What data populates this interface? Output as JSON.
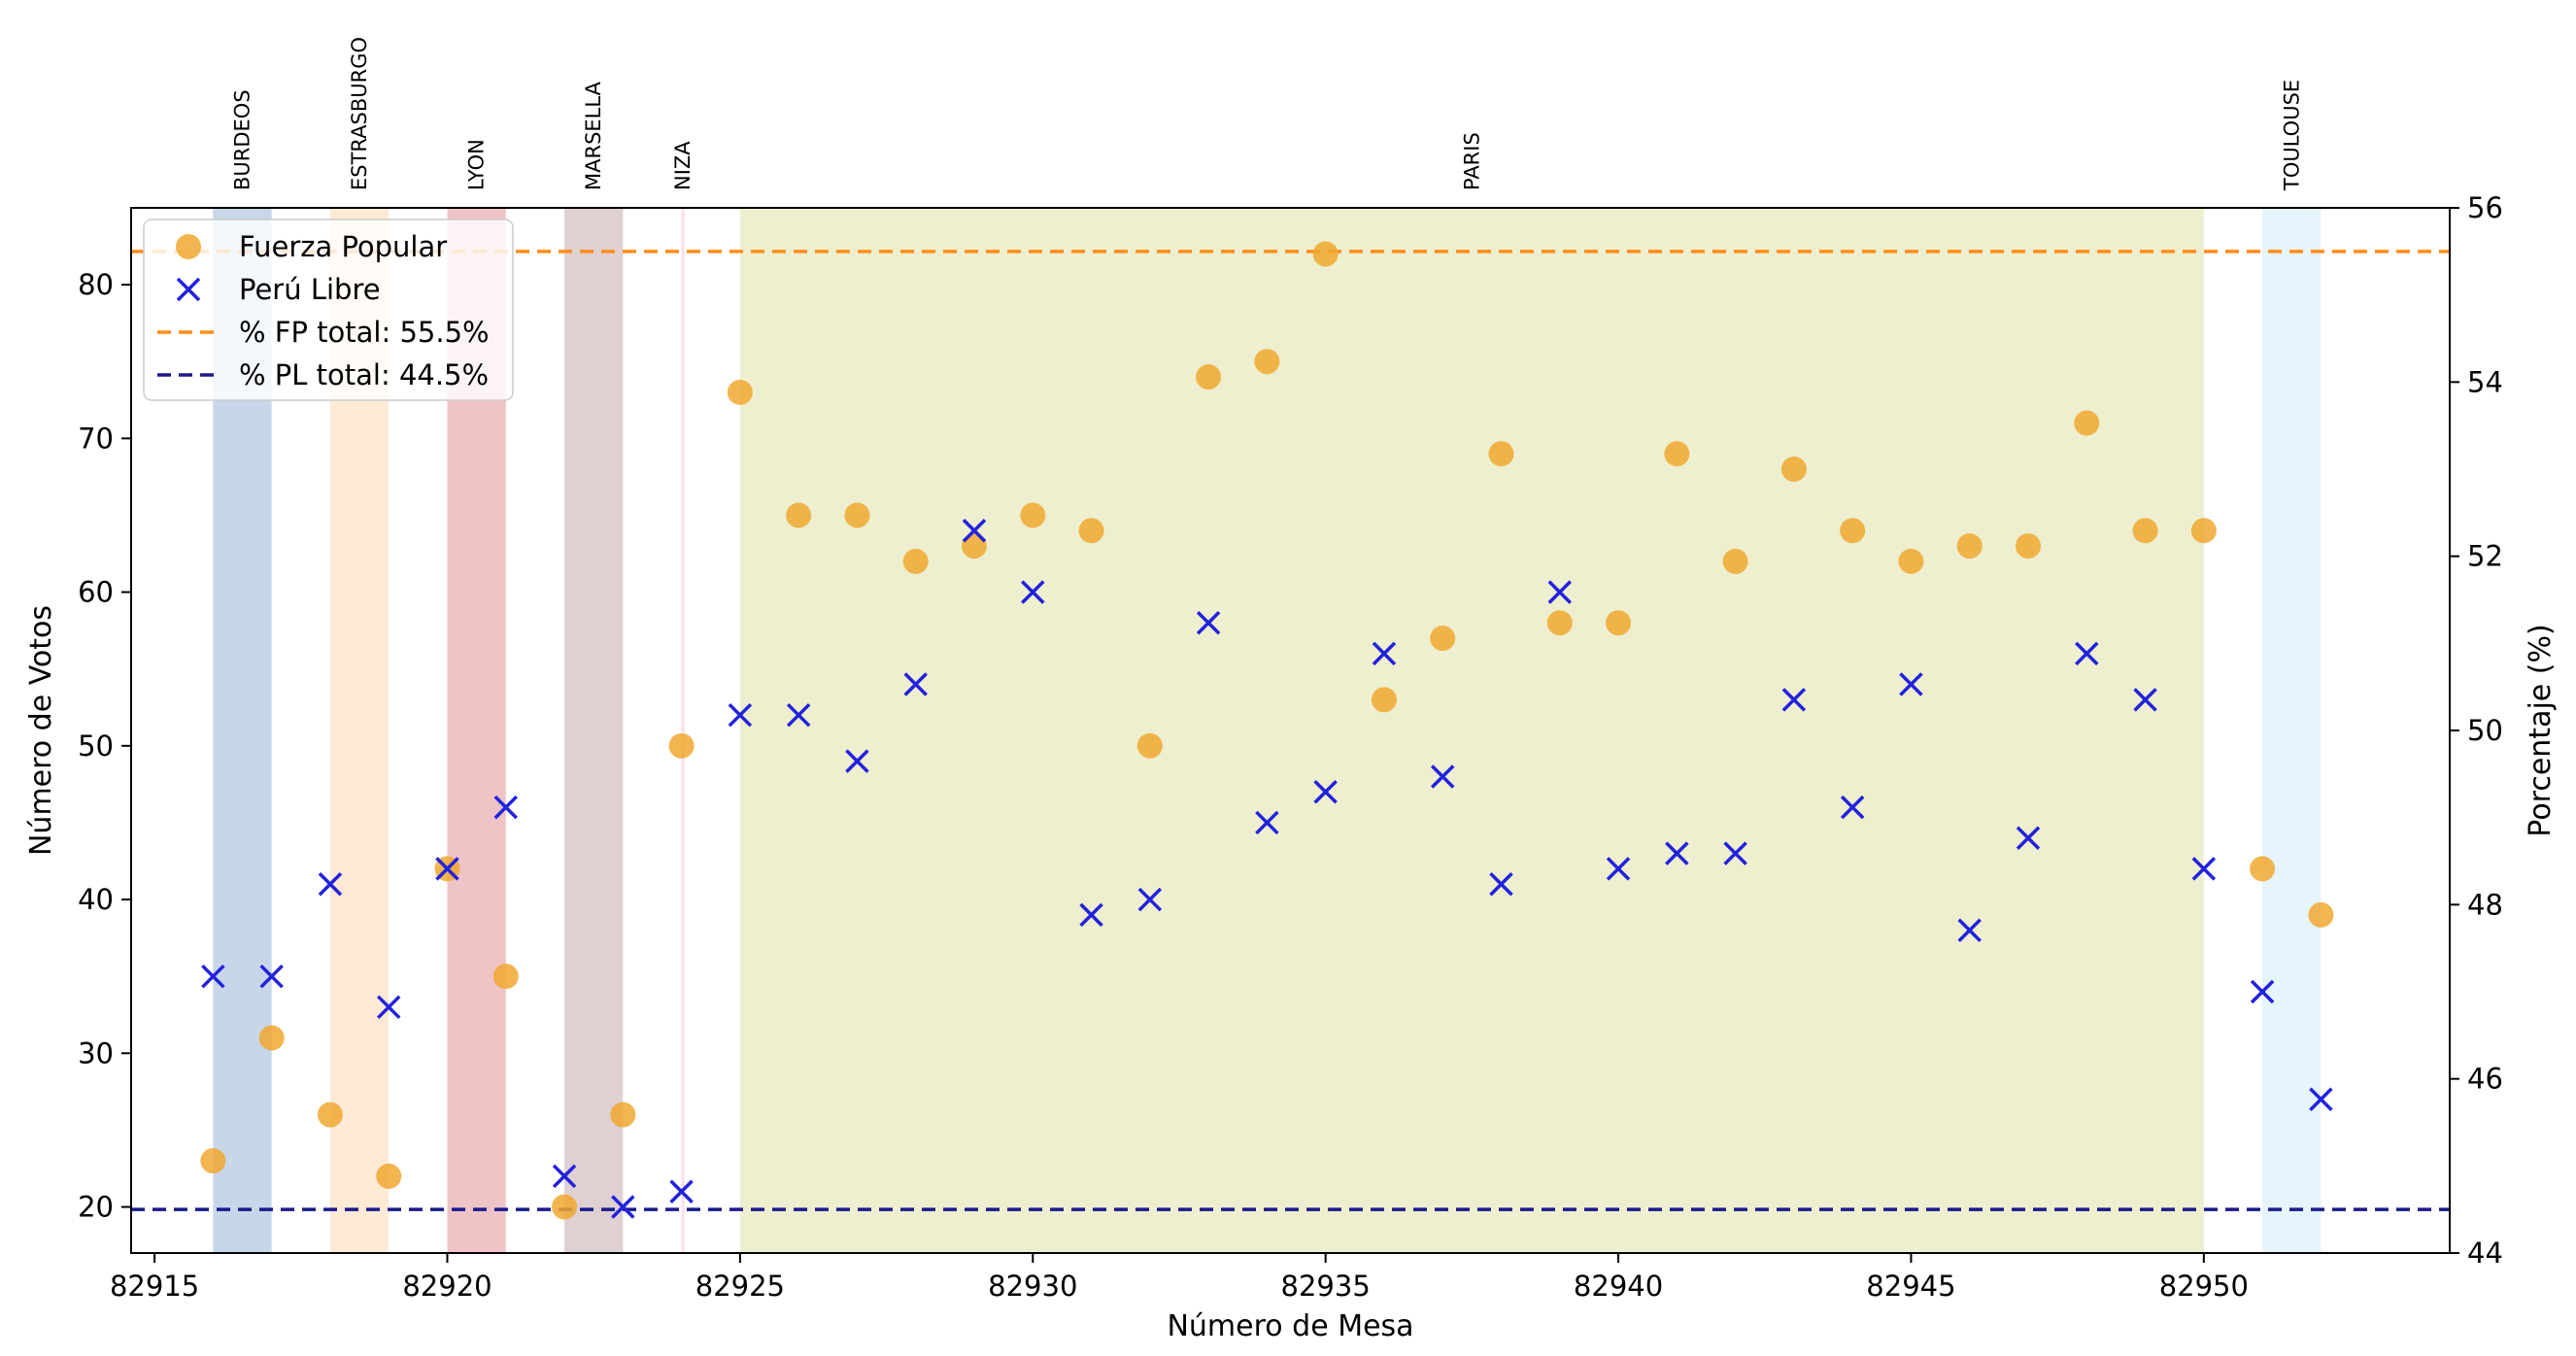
{
  "chart_data": {
    "type": "scatter",
    "xlabel": "Número de Mesa",
    "ylabel": "Número de Votos",
    "ylabel_right": "Porcentaje (%)",
    "xlim": [
      82914.6,
      82954.2
    ],
    "ylim": [
      17,
      85
    ],
    "ylim_right": [
      44,
      56
    ],
    "xticks": [
      82915,
      82920,
      82925,
      82930,
      82935,
      82940,
      82945,
      82950
    ],
    "yticks": [
      20,
      30,
      40,
      50,
      60,
      70,
      80
    ],
    "yticks_right": [
      44,
      46,
      48,
      50,
      52,
      54,
      56
    ],
    "legend_position": "top-left",
    "x": [
      82916,
      82917,
      82918,
      82919,
      82920,
      82921,
      82922,
      82923,
      82924,
      82925,
      82926,
      82927,
      82928,
      82929,
      82930,
      82931,
      82932,
      82933,
      82934,
      82935,
      82936,
      82937,
      82938,
      82939,
      82940,
      82941,
      82942,
      82943,
      82944,
      82945,
      82946,
      82947,
      82948,
      82949,
      82950,
      82951,
      82952
    ],
    "series": [
      {
        "name": "Fuerza Popular",
        "marker": "circle",
        "color": "#f0a830",
        "values": [
          23,
          31,
          26,
          22,
          42,
          35,
          20,
          26,
          50,
          73,
          65,
          65,
          62,
          63,
          65,
          64,
          50,
          74,
          75,
          82,
          53,
          57,
          69,
          58,
          58,
          69,
          62,
          68,
          64,
          62,
          63,
          63,
          71,
          64,
          64,
          42,
          39
        ]
      },
      {
        "name": "Perú Libre",
        "marker": "x",
        "color": "#2222dd",
        "values": [
          35,
          35,
          41,
          33,
          42,
          46,
          22,
          20,
          21,
          52,
          52,
          49,
          54,
          64,
          60,
          39,
          40,
          58,
          45,
          47,
          56,
          48,
          41,
          60,
          42,
          43,
          43,
          53,
          46,
          54,
          38,
          44,
          56,
          53,
          42,
          34,
          27
        ]
      }
    ],
    "reference_lines": [
      {
        "name": "% FP total: 55.5%",
        "axis": "right",
        "value": 55.5,
        "color": "#ff8c1a",
        "style": "dashed"
      },
      {
        "name": "% PL total: 44.5%",
        "axis": "right",
        "value": 44.5,
        "color": "#1a1a8c",
        "style": "dashed"
      }
    ],
    "regions": [
      {
        "label": "BURDEOS",
        "x_start": 82916,
        "x_end": 82917,
        "color": "#8fb0d3",
        "opacity": 0.5
      },
      {
        "label": "ESTRASBURGO",
        "x_start": 82918,
        "x_end": 82919,
        "color": "#ffd6ad",
        "opacity": 0.5
      },
      {
        "label": "LYON",
        "x_start": 82920,
        "x_end": 82921,
        "color": "#d66b72",
        "opacity": 0.4
      },
      {
        "label": "MARSELLA",
        "x_start": 82922,
        "x_end": 82923,
        "color": "#ae8b8f",
        "opacity": 0.4
      },
      {
        "label": "NIZA",
        "x_start": 82924,
        "x_end": 82924.04,
        "color": "#ff9ec4",
        "opacity": 0.35
      },
      {
        "label": "PARIS",
        "x_start": 82925,
        "x_end": 82950,
        "color": "#d4d886",
        "opacity": 0.4
      },
      {
        "label": "TOULOUSE",
        "x_start": 82951,
        "x_end": 82952,
        "color": "#b8e0f3",
        "opacity": 0.35
      }
    ],
    "grid": false
  }
}
